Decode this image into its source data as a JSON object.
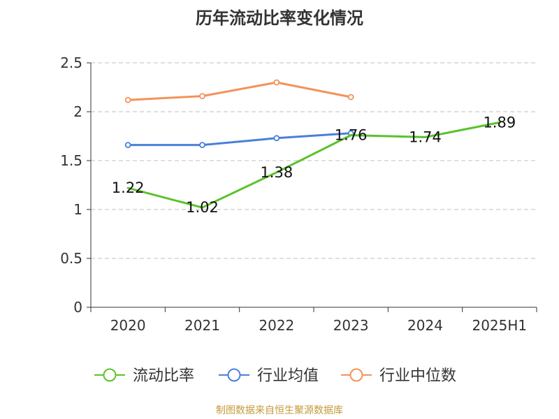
{
  "title": "历年流动比率变化情况",
  "footer": "制图数据来自恒生聚源数据库",
  "colors": {
    "current_ratio": "#5bc22b",
    "industry_avg": "#4a7fdb",
    "industry_median": "#f5915a",
    "grid": "#cccccc",
    "axis": "#333333",
    "footer": "#c59a3a"
  },
  "chart_data": {
    "type": "line",
    "title": "历年流动比率变化情况",
    "categories": [
      "2020",
      "2021",
      "2022",
      "2023",
      "2024",
      "2025H1"
    ],
    "yticks": [
      "0",
      "0.5",
      "1",
      "1.5",
      "2",
      "2.5"
    ],
    "ylim": [
      0,
      2.5
    ],
    "grid": true,
    "legend_position": "bottom",
    "series": [
      {
        "name": "流动比率",
        "color": "#5bc22b",
        "values": [
          1.22,
          1.02,
          1.38,
          1.76,
          1.74,
          1.89
        ],
        "labels": [
          "1.22",
          "1.02",
          "1.38",
          "1.76",
          "1.74",
          "1.89"
        ],
        "markers": false,
        "show_labels": true
      },
      {
        "name": "行业均值",
        "color": "#4a7fdb",
        "values": [
          1.66,
          1.66,
          1.73,
          1.78,
          null,
          null
        ],
        "markers": true,
        "show_labels": false
      },
      {
        "name": "行业中位数",
        "color": "#f5915a",
        "values": [
          2.12,
          2.16,
          2.3,
          2.15,
          null,
          null
        ],
        "markers": true,
        "show_labels": false
      }
    ]
  }
}
